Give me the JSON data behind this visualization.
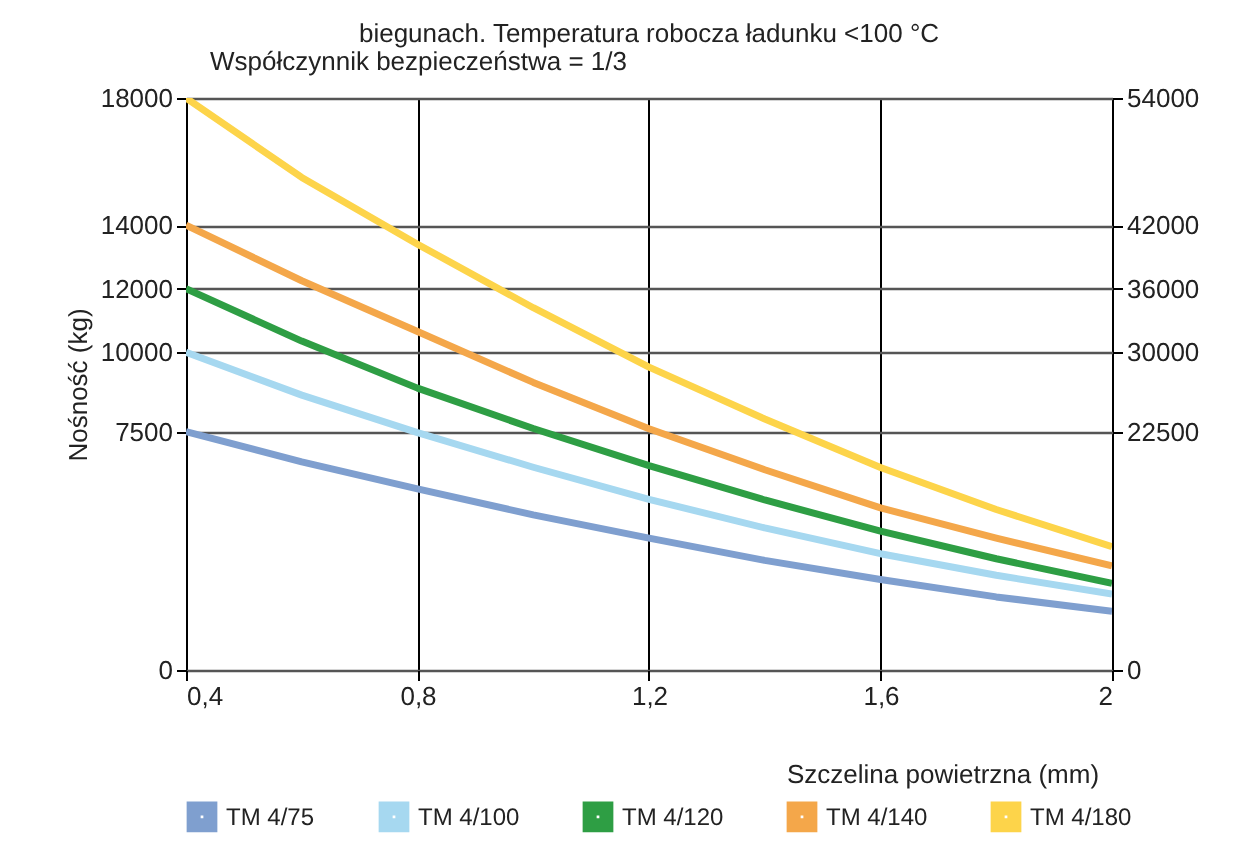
{
  "chart_data": {
    "type": "line",
    "title": "biegunach. Temperatura robocza ładunku <100 °C",
    "annotations": [
      "Współczynnik bezpieczeństwa = 1/3"
    ],
    "xlabel": "Szczelina powietrzna (mm)",
    "ylabel": "Nośność (kg)",
    "x": [
      0.4,
      0.6,
      0.8,
      1.0,
      1.2,
      1.4,
      1.6,
      1.8,
      2.0
    ],
    "series": [
      {
        "name": "TM 4/75",
        "color": "#7f9fcf",
        "values": [
          7500,
          6550,
          5700,
          4880,
          4150,
          3450,
          2850,
          2300,
          1850
        ]
      },
      {
        "name": "TM 4/100",
        "color": "#a6d8f0",
        "values": [
          10000,
          8650,
          7470,
          6380,
          5370,
          4470,
          3660,
          2980,
          2390
        ]
      },
      {
        "name": "TM 4/120",
        "color": "#2e9e44",
        "values": [
          12000,
          10350,
          8870,
          7600,
          6430,
          5350,
          4370,
          3500,
          2730
        ]
      },
      {
        "name": "TM 4/140",
        "color": "#f4a74a",
        "values": [
          14000,
          12250,
          10650,
          9050,
          7590,
          6300,
          5100,
          4150,
          3280
        ]
      },
      {
        "name": "TM 4/180",
        "color": "#fdd44a",
        "values": [
          18000,
          15500,
          13400,
          11400,
          9530,
          7900,
          6370,
          5050,
          3880
        ]
      }
    ],
    "xlim": [
      0.4,
      2.0
    ],
    "xticks": [
      {
        "value": 0.4,
        "label": "0,4"
      },
      {
        "value": 0.8,
        "label": "0,8"
      },
      {
        "value": 1.2,
        "label": "1,2"
      },
      {
        "value": 1.6,
        "label": "1,6"
      },
      2
    ],
    "ylim": [
      0,
      18000
    ],
    "yticks": [
      0,
      7500,
      10000,
      12000,
      14000,
      18000
    ],
    "y2lim": [
      0,
      54000
    ],
    "y2ticks": [
      0,
      22500,
      30000,
      36000,
      42000,
      54000
    ],
    "grid": true,
    "legend": "bottom",
    "marker": "none",
    "line_style": "solid"
  }
}
